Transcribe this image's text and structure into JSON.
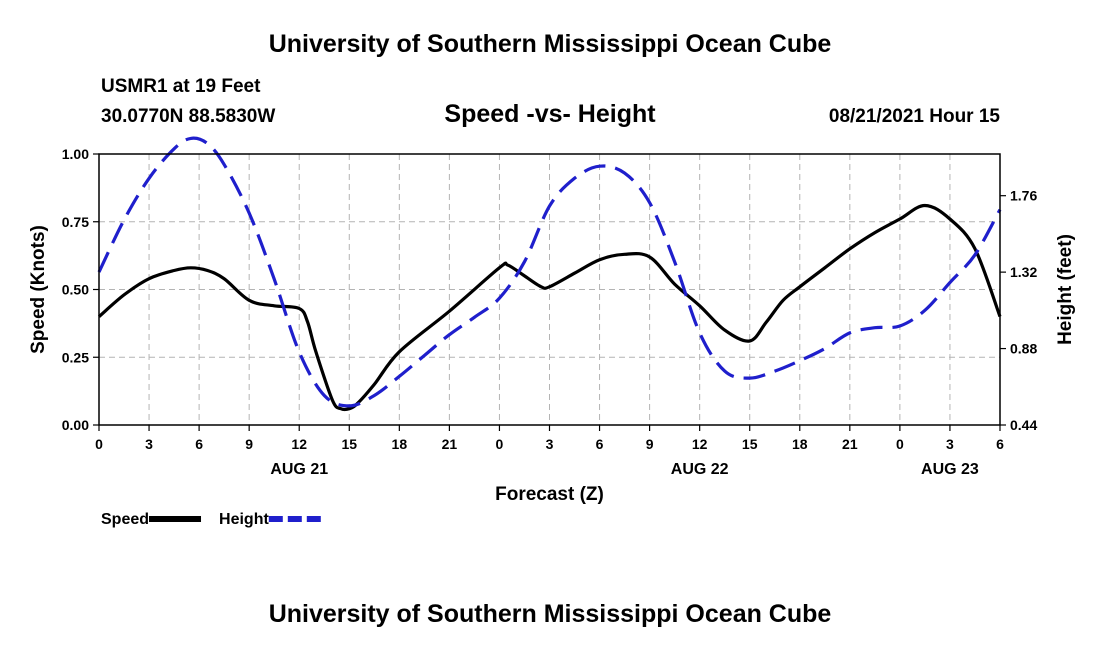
{
  "header": {
    "title": "University of Southern Mississippi Ocean Cube",
    "station": "USMR1 at 19 Feet",
    "coordinates": "30.0770N  88.5830W",
    "timestamp": "08/21/2021 Hour 15",
    "footer_title": "University of Southern Mississippi Ocean Cube"
  },
  "chart_data": {
    "type": "line",
    "title": "Speed -vs- Height",
    "xlabel": "Forecast (Z)",
    "ylabel": "Speed (Knots)",
    "y2label": "Height (feet)",
    "grid": true,
    "x_unit": "hours from 08/21 00Z",
    "xlim": [
      0,
      54
    ],
    "ylim": [
      0,
      1.0
    ],
    "y2lim": [
      0.44,
      2.0
    ],
    "x_ticks": [
      0,
      3,
      6,
      9,
      12,
      15,
      18,
      21,
      24,
      27,
      30,
      33,
      36,
      39,
      42,
      45,
      48,
      51,
      54
    ],
    "x_tick_labels": [
      "0",
      "3",
      "6",
      "9",
      "12",
      "15",
      "18",
      "21",
      "0",
      "3",
      "6",
      "9",
      "12",
      "15",
      "18",
      "21",
      "0",
      "3",
      "6"
    ],
    "date_labels": [
      {
        "x": 12,
        "label": "AUG 21"
      },
      {
        "x": 36,
        "label": "AUG 22"
      },
      {
        "x": 51,
        "label": "AUG 23"
      }
    ],
    "y_ticks": [
      0,
      0.25,
      0.5,
      0.75,
      1.0
    ],
    "y_tick_labels": [
      "0.00",
      "0.25",
      "0.50",
      "0.75",
      "1.00"
    ],
    "y2_ticks": [
      0.44,
      0.88,
      1.32,
      1.76
    ],
    "y2_tick_labels": [
      "0.44",
      "0.88",
      "1.32",
      "1.76"
    ],
    "legend_position": "bottom-left",
    "series": [
      {
        "name": "Speed",
        "axis": "left",
        "color": "#000000",
        "style": "solid",
        "x": [
          0,
          1.5,
          3,
          4.5,
          5.5,
          6.5,
          7.5,
          9,
          10.5,
          12,
          12.5,
          13,
          14,
          14.5,
          15,
          15.5,
          16.5,
          18,
          21,
          24,
          24.5,
          25.5,
          26.5,
          27,
          28.5,
          30,
          31.5,
          33,
          34.5,
          36,
          37.5,
          39,
          40,
          41,
          42,
          43.5,
          45,
          46.5,
          48,
          49.5,
          51,
          52.5,
          54
        ],
        "y": [
          0.4,
          0.48,
          0.54,
          0.57,
          0.58,
          0.57,
          0.54,
          0.46,
          0.44,
          0.43,
          0.38,
          0.27,
          0.09,
          0.06,
          0.06,
          0.08,
          0.15,
          0.27,
          0.42,
          0.58,
          0.59,
          0.55,
          0.51,
          0.51,
          0.56,
          0.61,
          0.63,
          0.62,
          0.52,
          0.44,
          0.35,
          0.31,
          0.38,
          0.46,
          0.51,
          0.58,
          0.65,
          0.71,
          0.76,
          0.81,
          0.76,
          0.65,
          0.4
        ]
      },
      {
        "name": "Height",
        "axis": "right",
        "color": "#1f1fcc",
        "style": "dashed",
        "x": [
          0,
          1.5,
          3,
          4.5,
          5.5,
          6.5,
          7.5,
          9,
          10.5,
          12,
          13.5,
          15,
          16.5,
          18,
          19.5,
          21,
          22.5,
          24,
          25.5,
          27,
          28.5,
          30,
          31.5,
          33,
          34.5,
          36,
          37.5,
          39,
          40.5,
          42,
          43.5,
          45,
          46.5,
          48,
          49.5,
          51,
          52.5,
          54
        ],
        "y": [
          1.32,
          1.62,
          1.86,
          2.03,
          2.09,
          2.06,
          1.94,
          1.66,
          1.28,
          0.86,
          0.61,
          0.55,
          0.61,
          0.72,
          0.84,
          0.96,
          1.06,
          1.17,
          1.38,
          1.7,
          1.86,
          1.93,
          1.89,
          1.72,
          1.38,
          0.97,
          0.75,
          0.71,
          0.75,
          0.81,
          0.88,
          0.97,
          1.0,
          1.01,
          1.1,
          1.26,
          1.42,
          1.68
        ]
      }
    ]
  }
}
